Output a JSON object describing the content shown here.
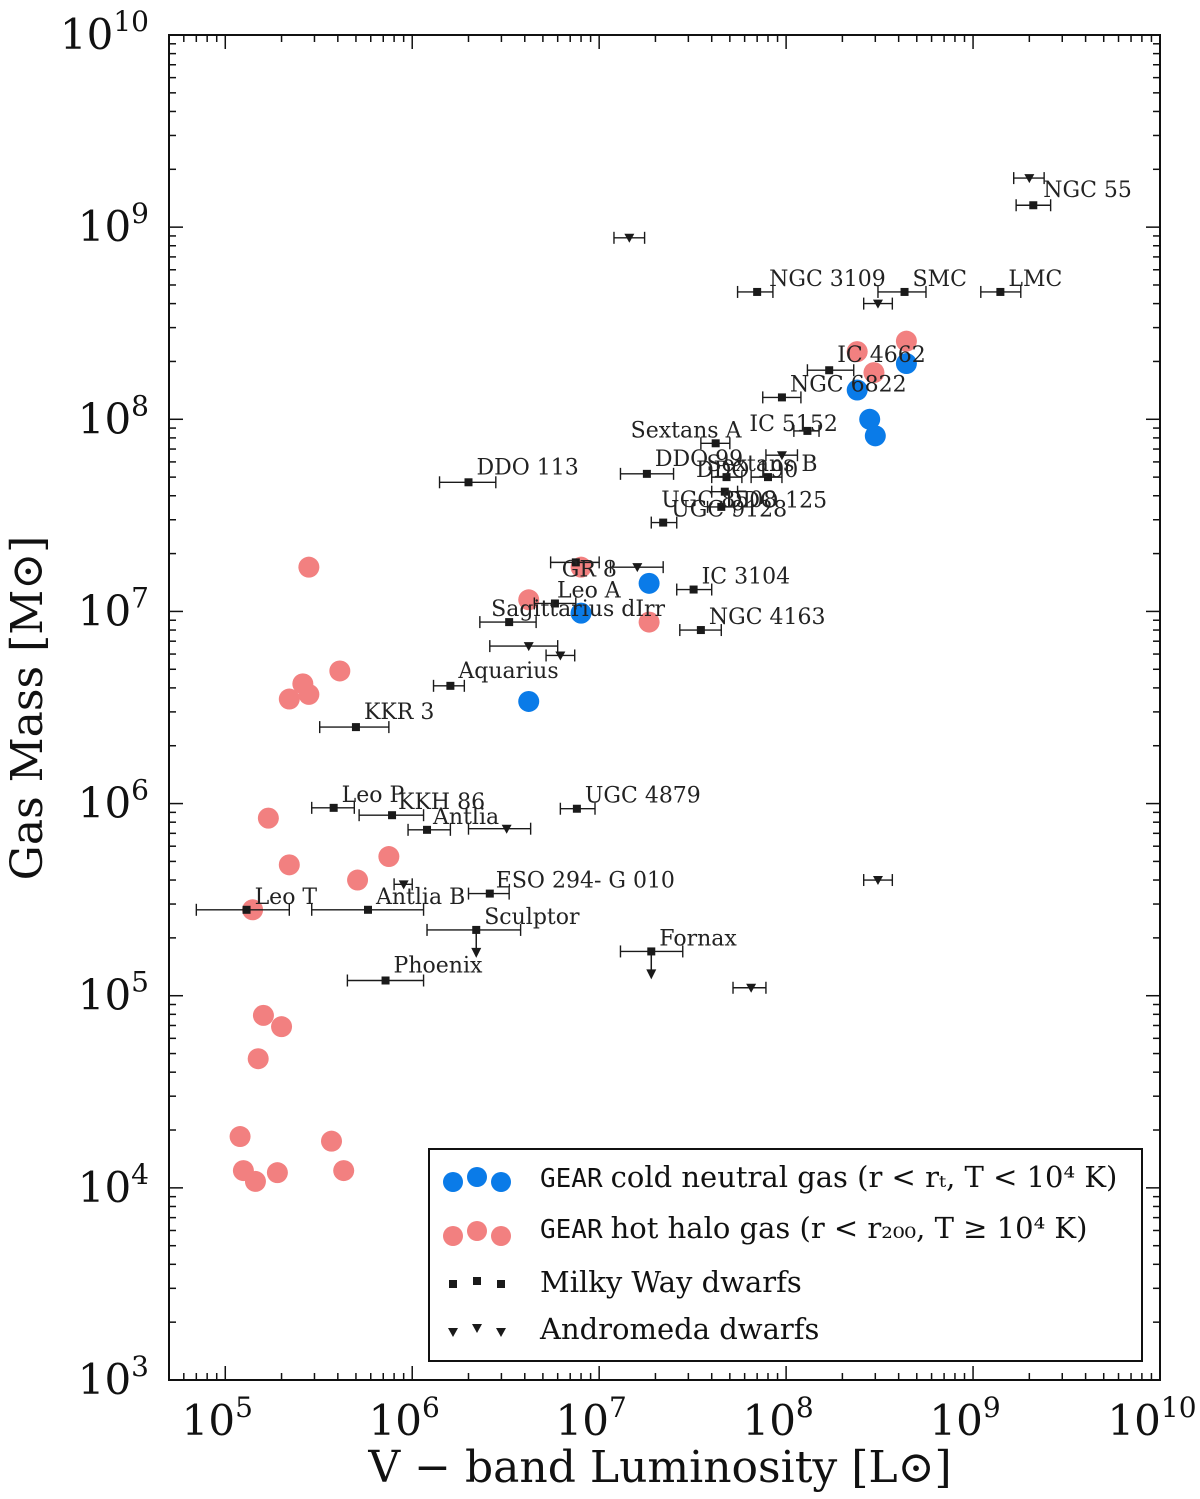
{
  "chart_data": {
    "type": "scatter",
    "xlabel": "V − band Luminosity [L⊙]",
    "ylabel": "Gas Mass [M⊙]",
    "xscale": "log",
    "yscale": "log",
    "xlim": [
      50000,
      10000000000
    ],
    "ylim": [
      1000,
      10000000000
    ],
    "grid": false,
    "legend_position": "bottom-right",
    "x_ticks": [
      {
        "value": 100000,
        "base": "10",
        "exp": "5"
      },
      {
        "value": 1000000,
        "base": "10",
        "exp": "6"
      },
      {
        "value": 10000000,
        "base": "10",
        "exp": "7"
      },
      {
        "value": 100000000,
        "base": "10",
        "exp": "8"
      },
      {
        "value": 1000000000,
        "base": "10",
        "exp": "9"
      },
      {
        "value": 10000000000,
        "base": "10",
        "exp": "10"
      }
    ],
    "y_ticks": [
      {
        "value": 1000,
        "base": "10",
        "exp": "3"
      },
      {
        "value": 10000,
        "base": "10",
        "exp": "4"
      },
      {
        "value": 100000,
        "base": "10",
        "exp": "5"
      },
      {
        "value": 1000000,
        "base": "10",
        "exp": "6"
      },
      {
        "value": 10000000,
        "base": "10",
        "exp": "7"
      },
      {
        "value": 100000000,
        "base": "10",
        "exp": "8"
      },
      {
        "value": 1000000000,
        "base": "10",
        "exp": "9"
      },
      {
        "value": 10000000000,
        "base": "10",
        "exp": "10"
      }
    ],
    "colors": {
      "cold": "#0a7be8",
      "hot": "#f28080",
      "obs": "#1a1a1a"
    },
    "series": [
      {
        "name": "GEAR cold neutral gas",
        "marker": "circle",
        "color": "#0a7be8",
        "points": [
          {
            "x": 440000000,
            "y": 195000000
          },
          {
            "x": 240000000,
            "y": 142000000
          },
          {
            "x": 280000000,
            "y": 100000000
          },
          {
            "x": 300000000,
            "y": 82000000
          },
          {
            "x": 18500000,
            "y": 14000000
          },
          {
            "x": 8000000,
            "y": 9800000
          },
          {
            "x": 4200000,
            "y": 3400000
          }
        ]
      },
      {
        "name": "GEAR hot halo gas",
        "marker": "circle",
        "color": "#f28080",
        "points": [
          {
            "x": 440000000,
            "y": 255000000
          },
          {
            "x": 240000000,
            "y": 225000000
          },
          {
            "x": 295000000,
            "y": 175000000
          },
          {
            "x": 8000000,
            "y": 17000000
          },
          {
            "x": 4200000,
            "y": 11500000
          },
          {
            "x": 18500000,
            "y": 8800000
          },
          {
            "x": 280000,
            "y": 17000000
          },
          {
            "x": 410000,
            "y": 4900000
          },
          {
            "x": 260000,
            "y": 4200000
          },
          {
            "x": 280000,
            "y": 3700000
          },
          {
            "x": 220000,
            "y": 3500000
          },
          {
            "x": 170000,
            "y": 840000
          },
          {
            "x": 220000,
            "y": 480000
          },
          {
            "x": 750000,
            "y": 530000
          },
          {
            "x": 510000,
            "y": 400000
          },
          {
            "x": 140000,
            "y": 280000
          },
          {
            "x": 160000,
            "y": 79000
          },
          {
            "x": 200000,
            "y": 69000
          },
          {
            "x": 150000,
            "y": 47000
          },
          {
            "x": 120000,
            "y": 18500
          },
          {
            "x": 370000,
            "y": 17500
          },
          {
            "x": 125000,
            "y": 12300
          },
          {
            "x": 190000,
            "y": 12000
          },
          {
            "x": 430000,
            "y": 12300
          },
          {
            "x": 145000,
            "y": 10800
          }
        ]
      },
      {
        "name": "Milky Way dwarfs",
        "marker": "square",
        "color": "#1a1a1a",
        "points": [
          {
            "label": "Leo P",
            "x": 380000,
            "y": 950000,
            "xerr": [
              290000,
              490000
            ],
            "upper": false
          },
          {
            "label": "Leo T",
            "x": 130000,
            "y": 280000,
            "xerr": [
              70000,
              220000
            ],
            "upper": false
          },
          {
            "label": "Sculptor",
            "x": 2200000,
            "y": 220000,
            "xerr": [
              1200000,
              3800000
            ],
            "upper": true
          },
          {
            "label": "Fornax",
            "x": 19000000,
            "y": 170000,
            "xerr": [
              13000000,
              28000000
            ],
            "upper": true
          },
          {
            "label": "LMC",
            "x": 1400000000,
            "y": 460000000,
            "xerr": [
              1100000000,
              1800000000
            ],
            "upper": false
          },
          {
            "label": "SMC",
            "x": 430000000,
            "y": 460000000,
            "xerr": [
              310000000,
              560000000
            ],
            "upper": false
          },
          {
            "label": "NGC 55",
            "x": 2100000000,
            "y": 1300000000,
            "xerr": [
              1700000000,
              2600000000
            ],
            "upper": false
          },
          {
            "label": "NGC 3109",
            "x": 70000000,
            "y": 460000000,
            "xerr": [
              55000000,
              85000000
            ],
            "upper": false
          },
          {
            "label": "IC 4662",
            "x": 170000000,
            "y": 180000000,
            "xerr": [
              130000000,
              230000000
            ],
            "upper": false
          },
          {
            "label": "NGC 6822",
            "x": 95000000,
            "y": 130000000,
            "xerr": [
              75000000,
              120000000
            ],
            "upper": false
          },
          {
            "label": "Sextans A",
            "x": 42000000,
            "y": 75000000,
            "xerr": [
              35000000,
              50000000
            ],
            "upper": false
          },
          {
            "label": "Sextans B",
            "x": 48000000,
            "y": 50000000,
            "xerr": [
              40000000,
              58000000
            ],
            "upper": false
          },
          {
            "label": "DDO 125",
            "x": 47000000,
            "y": 42000000,
            "xerr": [
              40000000,
              55000000
            ],
            "upper": false
          },
          {
            "label": "UGC 8508",
            "x": 45000000,
            "y": 35000000,
            "xerr": [
              38000000,
              53000000
            ],
            "upper": false
          },
          {
            "label": "DDO 99",
            "x": 18000000,
            "y": 52000000,
            "xerr": [
              13000000,
              25000000
            ],
            "upper": false
          },
          {
            "label": "DDO 113",
            "x": 2000000,
            "y": 47000000,
            "xerr": [
              1400000,
              2800000
            ],
            "upper": false
          },
          {
            "label": "UGC 9128",
            "x": 22000000,
            "y": 29000000,
            "xerr": [
              19000000,
              26000000
            ],
            "upper": false
          },
          {
            "label": "GR 8",
            "x": 7500000,
            "y": 18000000,
            "xerr": [
              5500000,
              10000000
            ],
            "upper": false
          },
          {
            "label": "Leo A",
            "x": 5800000,
            "y": 11000000,
            "xerr": [
              4500000,
              7500000
            ],
            "upper": false
          },
          {
            "label": "Sagittarius dIrr",
            "x": 3300000,
            "y": 8800000,
            "xerr": [
              2300000,
              4600000
            ],
            "upper": false
          },
          {
            "label": "IC 3104",
            "x": 32000000,
            "y": 13000000,
            "xerr": [
              26000000,
              40000000
            ],
            "upper": false
          },
          {
            "label": "NGC 4163",
            "x": 35000000,
            "y": 8000000,
            "xerr": [
              27000000,
              45000000
            ],
            "upper": false
          },
          {
            "label": "Aquarius",
            "x": 1600000,
            "y": 4100000,
            "xerr": [
              1300000,
              1900000
            ],
            "upper": false
          },
          {
            "label": "KKR 3",
            "x": 500000,
            "y": 2500000,
            "xerr": [
              320000,
              750000
            ],
            "upper": false
          },
          {
            "label": "KKH 86",
            "x": 780000,
            "y": 870000,
            "xerr": [
              520000,
              1150000
            ],
            "upper": false
          },
          {
            "label": "Antlia",
            "x": 1200000,
            "y": 730000,
            "xerr": [
              950000,
              1600000
            ],
            "upper": false
          },
          {
            "label": "UGC 4879",
            "x": 7600000,
            "y": 940000,
            "xerr": [
              6200000,
              9500000
            ],
            "upper": false
          },
          {
            "label": "ESO 294- G 010",
            "x": 2600000,
            "y": 340000,
            "xerr": [
              2000000,
              3300000
            ],
            "upper": false
          },
          {
            "label": "Antlia B",
            "x": 580000,
            "y": 280000,
            "xerr": [
              290000,
              1150000
            ],
            "upper": false
          },
          {
            "label": "Phoenix",
            "x": 720000,
            "y": 120000,
            "xerr": [
              450000,
              1150000
            ],
            "upper": false
          },
          {
            "label": "DDO 190",
            "x": 80000000,
            "y": 50000000,
            "xerr": [
              65000000,
              95000000
            ],
            "upper": false
          },
          {
            "label": "IC 5152",
            "x": 130000000,
            "y": 87000000,
            "xerr": [
              110000000,
              150000000
            ],
            "upper": false
          }
        ]
      },
      {
        "name": "Andromeda dwarfs",
        "marker": "triangle-down",
        "color": "#1a1a1a",
        "points": [
          {
            "x": 14500000,
            "y": 880000000,
            "xerr": [
              12000000,
              17500000
            ]
          },
          {
            "x": 2000000000,
            "y": 1800000000,
            "xerr": [
              1650000000,
              2400000000
            ]
          },
          {
            "x": 16000000,
            "y": 17000000,
            "xerr": [
              11500000,
              22000000
            ]
          },
          {
            "x": 4200000,
            "y": 6600000,
            "xerr": [
              2600000,
              6000000
            ]
          },
          {
            "x": 6200000,
            "y": 5900000,
            "xerr": [
              5200000,
              7400000
            ]
          },
          {
            "x": 3200000,
            "y": 740000,
            "xerr": [
              2000000,
              4300000
            ]
          },
          {
            "x": 900000,
            "y": 380000,
            "xerr": [
              800000,
              1000000
            ]
          },
          {
            "x": 310000000,
            "y": 400000000,
            "xerr": [
              260000000,
              370000000
            ]
          },
          {
            "x": 310000000,
            "y": 400000,
            "xerr": [
              260000000,
              370000000
            ]
          },
          {
            "x": 65000000,
            "y": 110000,
            "xerr": [
              52000000,
              78000000
            ]
          },
          {
            "x": 95000000,
            "y": 65000000,
            "xerr": [
              78000000,
              115000000
            ]
          }
        ]
      }
    ],
    "legend": [
      {
        "key": "cold",
        "prefix": "GEAR",
        "text": "cold neutral gas (r < rₜ, T < 10⁴ K)"
      },
      {
        "key": "hot",
        "prefix": "GEAR",
        "text": "hot halo gas (r < r₂₀₀, T ≥ 10⁴ K)"
      },
      {
        "key": "mw",
        "prefix": "",
        "text": "Milky Way dwarfs"
      },
      {
        "key": "m31",
        "prefix": "",
        "text": "Andromeda dwarfs"
      }
    ]
  }
}
